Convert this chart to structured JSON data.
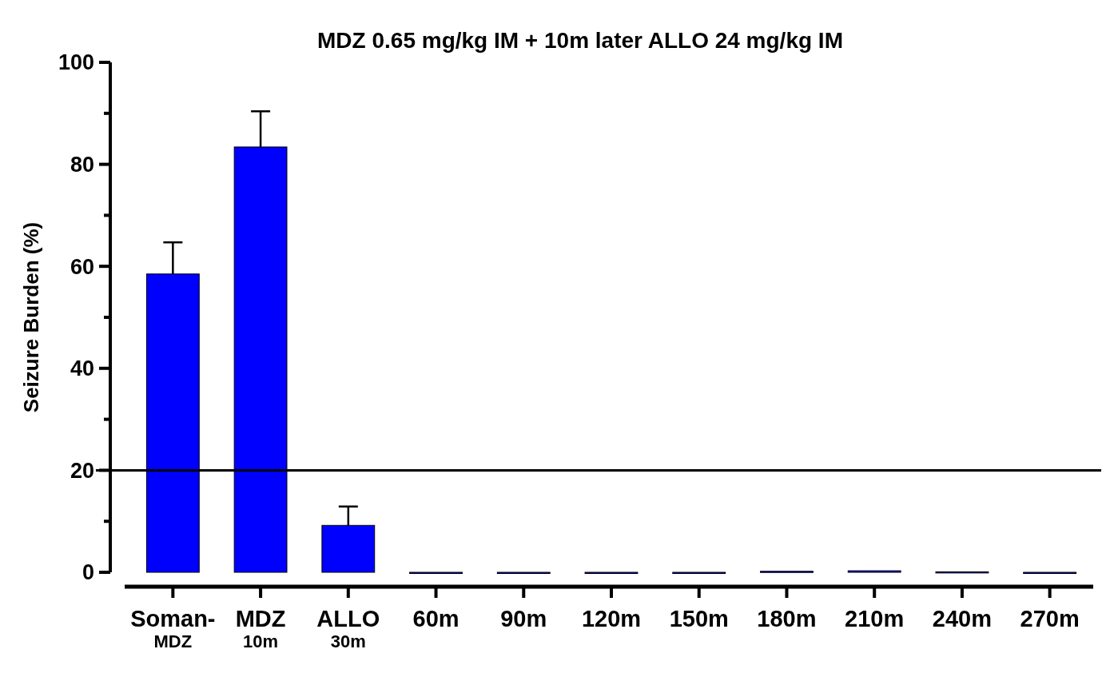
{
  "chart_data": {
    "type": "bar",
    "title": "MDZ 0.65 mg/kg IM + 10m later ALLO 24 mg/kg IM",
    "ylabel": "Seizure Burden (%)",
    "categories": [
      "Soman-MDZ",
      "MDZ 10m",
      "ALLO 30m",
      "60m",
      "90m",
      "120m",
      "150m",
      "180m",
      "210m",
      "240m",
      "270m"
    ],
    "values": [
      58.5,
      83.4,
      9.2,
      0,
      0,
      0,
      0,
      0.2,
      0.3,
      0.1,
      0
    ],
    "errors": [
      6.2,
      7.0,
      3.7,
      null,
      null,
      null,
      null,
      null,
      null,
      null,
      null
    ],
    "color": "#0000ff",
    "ylim": [
      0,
      100
    ],
    "yticks": [
      0,
      20,
      40,
      60,
      80,
      100
    ],
    "ref_lines": [
      {
        "axis": "y",
        "value": 20,
        "color": "#000000"
      }
    ],
    "grid": false
  }
}
